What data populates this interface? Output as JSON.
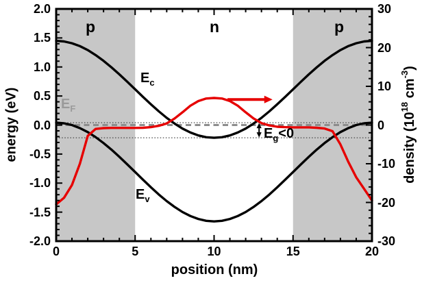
{
  "chart_data": {
    "type": "line",
    "title": "",
    "xlabel": "position (nm)",
    "ylabel_left": "energy (eV)",
    "ylabel_right": "density (10^18 cm^-3)",
    "x_range": [
      0,
      20
    ],
    "y_left_range": [
      -2.0,
      2.0
    ],
    "y_right_range": [
      -30,
      30
    ],
    "x_tick_values": [
      0,
      5,
      10,
      15,
      20
    ],
    "x_tick_labels": [
      "0",
      "5",
      "10",
      "15",
      "20"
    ],
    "x_minor_step": 1,
    "left_tick_values": [
      2.0,
      1.5,
      1.0,
      0.5,
      0.0,
      -0.5,
      -1.0,
      -1.5,
      -2.0
    ],
    "left_tick_labels": [
      "2.0",
      "1.5",
      "1.0",
      "0.5",
      "0.0",
      "-0.5",
      "-1.0",
      "-1.5",
      "-2.0"
    ],
    "left_minor_step": 0.1,
    "right_tick_values": [
      30,
      20,
      10,
      0,
      -10,
      -20,
      -30
    ],
    "right_tick_labels": [
      "30",
      "20",
      "10",
      "0",
      "-10",
      "-20",
      "-30"
    ],
    "right_minor_step": 2,
    "grid": false,
    "legend": "none",
    "colors": {
      "shade": "#c7c7c7",
      "black_curve": "#000000",
      "red_curve": "#e60000",
      "fermi_gray": "#8c8c8c",
      "dotted_gray": "#444444"
    },
    "regions": [
      {
        "label": "p",
        "x_start": 0,
        "x_end": 5,
        "shaded": true
      },
      {
        "label": "n",
        "x_start": 5,
        "x_end": 15,
        "shaded": false
      },
      {
        "label": "p",
        "x_start": 15,
        "x_end": 20,
        "shaded": true
      }
    ],
    "reference_lines": [
      {
        "name": "fermi-level-EF",
        "y_left": 0.0,
        "style": "dashed",
        "color": "#8c8c8c"
      },
      {
        "name": "valence-band-maximum",
        "y_left": 0.04,
        "style": "dotted",
        "color": "#444444"
      },
      {
        "name": "conduction-band-minimum",
        "y_left": -0.22,
        "style": "dotted",
        "color": "#444444"
      }
    ],
    "series": [
      {
        "name": "conduction-band-Ec",
        "axis": "left",
        "color": "#000000",
        "points": [
          [
            0,
            1.45
          ],
          [
            0.5,
            1.44
          ],
          [
            1,
            1.409
          ],
          [
            1.5,
            1.359
          ],
          [
            2,
            1.291
          ],
          [
            2.5,
            1.205
          ],
          [
            3,
            1.106
          ],
          [
            3.5,
            0.994
          ],
          [
            4,
            0.873
          ],
          [
            4.5,
            0.746
          ],
          [
            5,
            0.615
          ],
          [
            5.5,
            0.484
          ],
          [
            6,
            0.357
          ],
          [
            6.5,
            0.236
          ],
          [
            7,
            0.124
          ],
          [
            7.5,
            0.025
          ],
          [
            8,
            -0.061
          ],
          [
            8.5,
            -0.129
          ],
          [
            9,
            -0.179
          ],
          [
            9.5,
            -0.21
          ],
          [
            10,
            -0.22
          ],
          [
            10.5,
            -0.21
          ],
          [
            11,
            -0.179
          ],
          [
            11.5,
            -0.129
          ],
          [
            12,
            -0.061
          ],
          [
            12.5,
            0.025
          ],
          [
            13,
            0.124
          ],
          [
            13.5,
            0.236
          ],
          [
            14,
            0.357
          ],
          [
            14.5,
            0.484
          ],
          [
            15,
            0.615
          ],
          [
            15.5,
            0.746
          ],
          [
            16,
            0.873
          ],
          [
            16.5,
            0.994
          ],
          [
            17,
            1.106
          ],
          [
            17.5,
            1.205
          ],
          [
            18,
            1.291
          ],
          [
            18.5,
            1.359
          ],
          [
            19,
            1.409
          ],
          [
            19.5,
            1.44
          ],
          [
            20,
            1.45
          ]
        ]
      },
      {
        "name": "valence-band-Ev",
        "axis": "left",
        "color": "#000000",
        "points": [
          [
            0,
            0.04
          ],
          [
            0.5,
            0.03
          ],
          [
            1,
            0.0
          ],
          [
            1.5,
            -0.053
          ],
          [
            2,
            -0.122
          ],
          [
            2.5,
            -0.209
          ],
          [
            3,
            -0.31
          ],
          [
            3.5,
            -0.424
          ],
          [
            4,
            -0.547
          ],
          [
            4.5,
            -0.677
          ],
          [
            5,
            -0.81
          ],
          [
            5.5,
            -0.943
          ],
          [
            6,
            -1.073
          ],
          [
            6.5,
            -1.196
          ],
          [
            7,
            -1.31
          ],
          [
            7.5,
            -1.411
          ],
          [
            8,
            -1.498
          ],
          [
            8.5,
            -1.567
          ],
          [
            9,
            -1.618
          ],
          [
            9.5,
            -1.649
          ],
          [
            10,
            -1.66
          ],
          [
            10.5,
            -1.649
          ],
          [
            11,
            -1.618
          ],
          [
            11.5,
            -1.567
          ],
          [
            12,
            -1.498
          ],
          [
            12.5,
            -1.411
          ],
          [
            13,
            -1.31
          ],
          [
            13.5,
            -1.196
          ],
          [
            14,
            -1.073
          ],
          [
            14.5,
            -0.943
          ],
          [
            15,
            -0.81
          ],
          [
            15.5,
            -0.677
          ],
          [
            16,
            -0.547
          ],
          [
            16.5,
            -0.424
          ],
          [
            17,
            -0.31
          ],
          [
            17.5,
            -0.209
          ],
          [
            18,
            -0.122
          ],
          [
            18.5,
            -0.053
          ],
          [
            19,
            0.0
          ],
          [
            19.5,
            0.03
          ],
          [
            20,
            0.04
          ]
        ]
      },
      {
        "name": "carrier-density",
        "axis": "right",
        "color": "#e60000",
        "points": [
          [
            0,
            -20.5
          ],
          [
            0.5,
            -18.8
          ],
          [
            1,
            -15.5
          ],
          [
            1.5,
            -10
          ],
          [
            2,
            -2.8
          ],
          [
            2.5,
            -1.0
          ],
          [
            3,
            -0.8
          ],
          [
            3.5,
            -0.75
          ],
          [
            4,
            -0.75
          ],
          [
            4.5,
            -0.75
          ],
          [
            5,
            -0.75
          ],
          [
            5.5,
            -0.7
          ],
          [
            6,
            -0.55
          ],
          [
            6.5,
            -0.2
          ],
          [
            7,
            0.4
          ],
          [
            7.5,
            1.7
          ],
          [
            8,
            3.3
          ],
          [
            8.5,
            5.0
          ],
          [
            9,
            6.2
          ],
          [
            9.5,
            6.85
          ],
          [
            10,
            7.0
          ],
          [
            10.5,
            6.85
          ],
          [
            11,
            6.2
          ],
          [
            11.5,
            5.0
          ],
          [
            12,
            3.3
          ],
          [
            12.5,
            1.7
          ],
          [
            13,
            0.5
          ],
          [
            13.5,
            -0.1
          ],
          [
            14,
            -0.45
          ],
          [
            14.5,
            -0.55
          ],
          [
            15,
            -0.6
          ],
          [
            15.5,
            -0.6
          ],
          [
            16,
            -0.6
          ],
          [
            16.5,
            -0.7
          ],
          [
            17,
            -0.9
          ],
          [
            17.5,
            -1.6
          ],
          [
            18,
            -5
          ],
          [
            18.5,
            -9.5
          ],
          [
            19,
            -13.5
          ],
          [
            19.5,
            -16.5
          ],
          [
            20,
            -19.5
          ]
        ]
      }
    ],
    "annotations": [
      {
        "name": "negative-gap-arrow",
        "type": "double-arrow-vertical",
        "x": 12.85,
        "y_left_from": 0.04,
        "y_left_to": -0.22,
        "color": "#000000"
      },
      {
        "name": "density-axis-pointer-arrow",
        "type": "arrow-right",
        "x_from": 10.85,
        "x_to": 13.7,
        "y_left": 0.44,
        "color": "#e60000"
      }
    ]
  },
  "labels": {
    "ec": {
      "main": "E",
      "sub": "c"
    },
    "ev": {
      "main": "E",
      "sub": "v"
    },
    "ef": {
      "main": "E",
      "sub": "F"
    },
    "eg": {
      "main": "E",
      "sub": "g",
      "rest": "<0"
    },
    "yaxis_right_parts": {
      "p0": "density (10",
      "sup1": "18",
      "p1": " cm",
      "sup2": "-3",
      "p2": ")"
    }
  }
}
